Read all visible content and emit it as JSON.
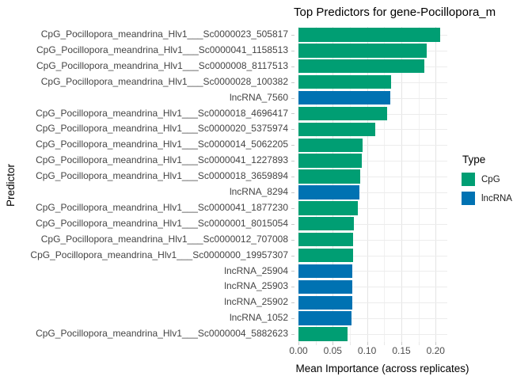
{
  "legend": {
    "title": "Type",
    "items": [
      {
        "label": "CpG",
        "color": "#009E73"
      },
      {
        "label": "lncRNA",
        "color": "#0072B2"
      }
    ]
  },
  "axis": {
    "x_tick_labels": [
      "0.00",
      "0.05",
      "0.10",
      "0.15",
      "0.20"
    ]
  },
  "colors": {
    "CpG": "#009E73",
    "lncRNA": "#0072B2",
    "grid_major": "#e4e4e4",
    "grid_minor": "#f1f1f1",
    "hgrid": "#ececec",
    "tick_major": "#c9c9c9",
    "tick_minor": "#e8e8e8"
  },
  "chart_data": {
    "type": "bar",
    "orientation": "horizontal",
    "title": "Top Predictors for gene-Pocillopora_m",
    "xlabel": "Mean Importance (across replicates)",
    "ylabel": "Predictor",
    "xlim": [
      0,
      0.217
    ],
    "x_tick_values": [
      0,
      0.05,
      0.1,
      0.15,
      0.2
    ],
    "grid": true,
    "legend_position": "right",
    "series_field": "Type",
    "categories": [
      "CpG_Pocillopora_meandrina_Hlv1___Sc0000023_505817",
      "CpG_Pocillopora_meandrina_Hlv1___Sc0000041_1158513",
      "CpG_Pocillopora_meandrina_Hlv1___Sc0000008_8117513",
      "CpG_Pocillopora_meandrina_Hlv1___Sc0000028_100382",
      "lncRNA_7560",
      "CpG_Pocillopora_meandrina_Hlv1___Sc0000018_4696417",
      "CpG_Pocillopora_meandrina_Hlv1___Sc0000020_5375974",
      "CpG_Pocillopora_meandrina_Hlv1___Sc0000014_5062205",
      "CpG_Pocillopora_meandrina_Hlv1___Sc0000041_1227893",
      "CpG_Pocillopora_meandrina_Hlv1___Sc0000018_3659894",
      "lncRNA_8294",
      "CpG_Pocillopora_meandrina_Hlv1___Sc0000041_1877230",
      "CpG_Pocillopora_meandrina_Hlv1___Sc0000001_8015054",
      "CpG_Pocillopora_meandrina_Hlv1___Sc0000012_707008",
      "CpG_Pocillopora_meandrina_Hlv1___Sc0000000_19957307",
      "lncRNA_25904",
      "lncRNA_25903",
      "lncRNA_25902",
      "lncRNA_1052",
      "CpG_Pocillopora_meandrina_Hlv1___Sc0000004_5882623"
    ],
    "values": [
      0.207,
      0.187,
      0.184,
      0.135,
      0.134,
      0.129,
      0.112,
      0.093,
      0.092,
      0.09,
      0.089,
      0.087,
      0.081,
      0.08,
      0.08,
      0.079,
      0.078,
      0.078,
      0.077,
      0.072
    ],
    "types": [
      "CpG",
      "CpG",
      "CpG",
      "CpG",
      "lncRNA",
      "CpG",
      "CpG",
      "CpG",
      "CpG",
      "CpG",
      "lncRNA",
      "CpG",
      "CpG",
      "CpG",
      "CpG",
      "lncRNA",
      "lncRNA",
      "lncRNA",
      "lncRNA",
      "CpG"
    ]
  }
}
